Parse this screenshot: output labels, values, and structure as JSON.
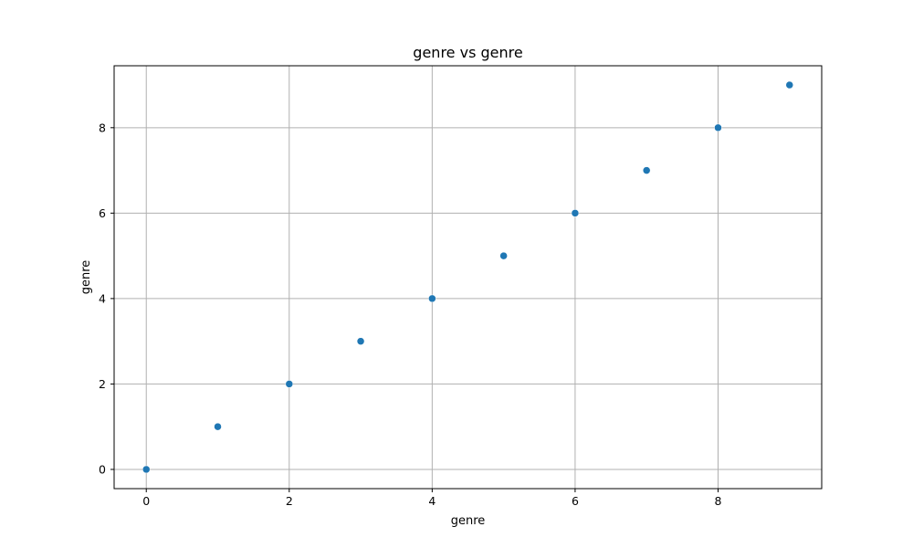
{
  "chart_data": {
    "type": "scatter",
    "title": "genre vs genre",
    "xlabel": "genre",
    "ylabel": "genre",
    "x": [
      0,
      1,
      2,
      3,
      4,
      5,
      6,
      7,
      8,
      9
    ],
    "y": [
      0,
      1,
      2,
      3,
      4,
      5,
      6,
      7,
      8,
      9
    ],
    "xlim": [
      -0.45,
      9.45
    ],
    "ylim": [
      -0.45,
      9.45
    ],
    "xticks": [
      0,
      2,
      4,
      6,
      8
    ],
    "yticks": [
      0,
      2,
      4,
      6,
      8
    ],
    "xtick_labels": [
      "0",
      "2",
      "4",
      "6",
      "8"
    ],
    "ytick_labels": [
      "0",
      "2",
      "4",
      "6",
      "8"
    ],
    "grid": true,
    "marker_color": "#1f77b4",
    "grid_color": "#b0b0b0",
    "axis_color": "#000000"
  }
}
